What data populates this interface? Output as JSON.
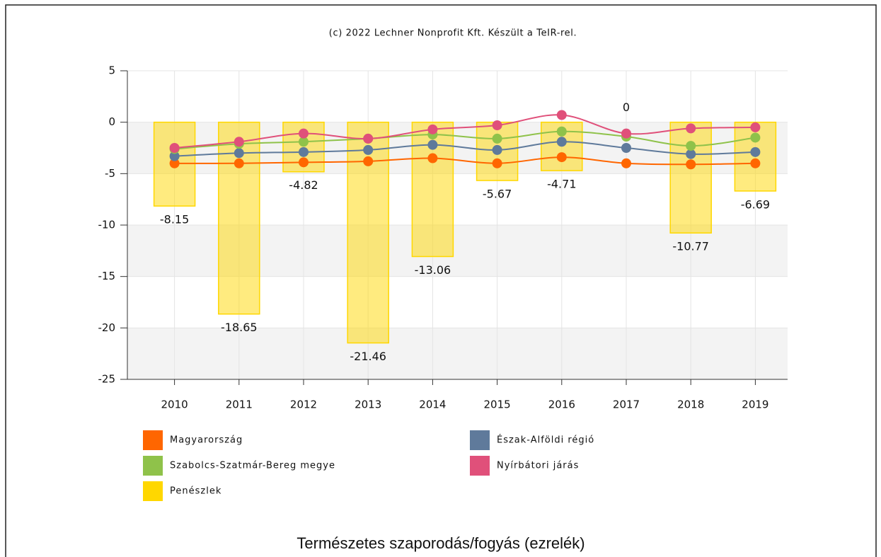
{
  "chart_data": {
    "type": "combo",
    "subtitle": "(c) 2022 Lechner Nonprofit Kft. Készült a TeIR-rel.",
    "title": "Természetes szaporodás/fogyás (ezrelék)",
    "categories": [
      "2010",
      "2011",
      "2012",
      "2013",
      "2014",
      "2015",
      "2016",
      "2017",
      "2018",
      "2019"
    ],
    "ylim": [
      -25,
      5
    ],
    "yticks": [
      5,
      0,
      -5,
      -10,
      -15,
      -20,
      -25
    ],
    "grid": true,
    "series": [
      {
        "name": "Magyarország",
        "type": "line",
        "color": "#ff6600",
        "values": [
          -4.0,
          -4.0,
          -3.9,
          -3.8,
          -3.5,
          -4.0,
          -3.4,
          -4.0,
          -4.1,
          -4.0
        ]
      },
      {
        "name": "Észak-Alföldi régió",
        "type": "line",
        "color": "#5f7a9b",
        "values": [
          -3.3,
          -3.0,
          -2.9,
          -2.7,
          -2.2,
          -2.7,
          -1.9,
          -2.5,
          -3.1,
          -2.9
        ]
      },
      {
        "name": "Szabolcs-Szatmár-Bereg megye",
        "type": "line",
        "color": "#8fc24a",
        "values": [
          -2.6,
          -2.1,
          -1.9,
          -1.6,
          -1.2,
          -1.6,
          -0.9,
          -1.4,
          -2.3,
          -1.5
        ]
      },
      {
        "name": "Nyírbátori járás",
        "type": "line",
        "color": "#e0507a",
        "values": [
          -2.5,
          -1.9,
          -1.1,
          -1.6,
          -0.7,
          -0.3,
          0.7,
          -1.1,
          -0.6,
          -0.5
        ]
      },
      {
        "name": "Penészlek",
        "type": "bar",
        "color": "#ffd700",
        "values": [
          -8.15,
          -18.65,
          -4.82,
          -21.46,
          -13.06,
          -5.67,
          -4.71,
          0,
          -10.77,
          -6.69
        ]
      }
    ]
  }
}
